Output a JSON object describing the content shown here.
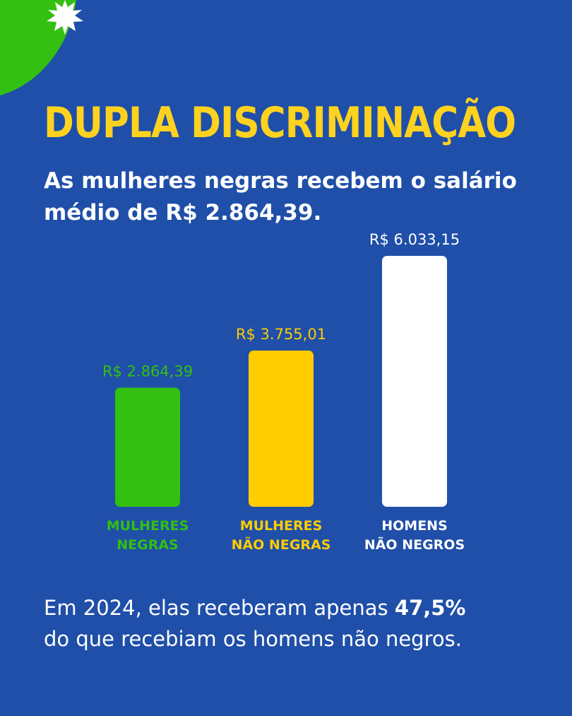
{
  "title": "DUPLA DISCRIMINAÇÃO",
  "subtitle_line1": "As mulheres negras recebem o salário",
  "subtitle_line2": "médio de R$ 2.864,39.",
  "footer": {
    "part1": "Em 2024, elas receberam apenas ",
    "highlight": "47,5%",
    "part2": "do que recebiam os homens não negros."
  },
  "colors": {
    "background": "#1f4fa8",
    "title": "#ffd21f",
    "green": "#33c011",
    "yellow": "#ffcc00",
    "white": "#ffffff"
  },
  "chart_data": {
    "type": "bar",
    "categories": [
      [
        "MULHERES",
        "NEGRAS"
      ],
      [
        "MULHERES",
        "NÃO NEGRAS"
      ],
      [
        "HOMENS",
        "NÃO NEGROS"
      ]
    ],
    "values": [
      2864.39,
      3755.01,
      6033.15
    ],
    "value_labels": [
      "R$ 2.864,39",
      "R$ 3.755,01",
      "R$ 6.033,15"
    ],
    "bar_colors": [
      "#33c011",
      "#ffcc00",
      "#ffffff"
    ],
    "label_colors": [
      "#33c011",
      "#ffcc00",
      "#ffffff"
    ],
    "ylim": [
      0,
      6033.15
    ],
    "grid": false
  }
}
